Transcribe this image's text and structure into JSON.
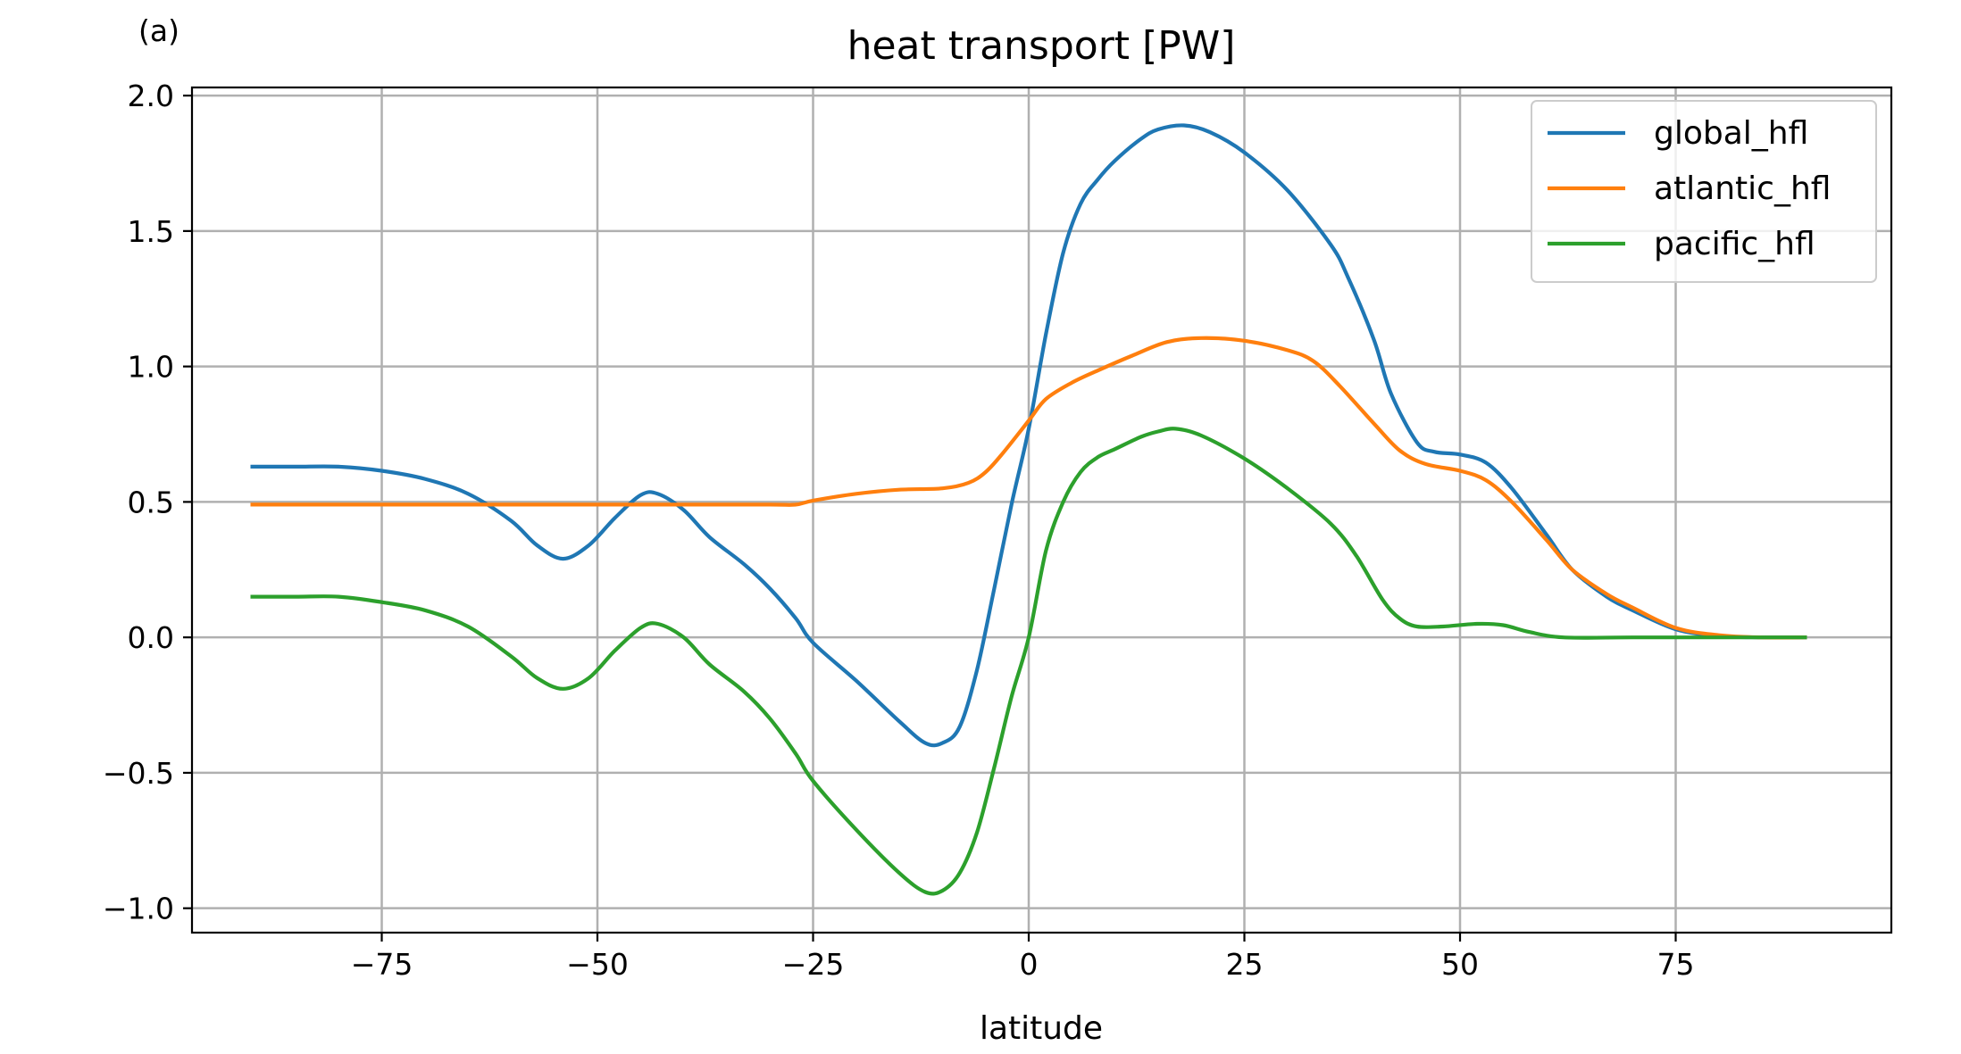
{
  "chart_data": {
    "type": "line",
    "panel_label": "(a)",
    "title": "heat transport [PW]",
    "xlabel": "latitude",
    "ylabel": "",
    "xlim": [
      -97,
      100
    ],
    "ylim": [
      -1.09,
      2.03
    ],
    "xticks": [
      -75,
      -50,
      -25,
      0,
      25,
      50,
      75
    ],
    "xtick_labels": [
      "−75",
      "−50",
      "−25",
      "0",
      "25",
      "50",
      "75"
    ],
    "yticks": [
      -1.0,
      -0.5,
      0.0,
      0.5,
      1.0,
      1.5,
      2.0
    ],
    "ytick_labels": [
      "−1.0",
      "−0.5",
      "0.0",
      "0.5",
      "1.0",
      "1.5",
      "2.0"
    ],
    "grid": true,
    "legend_position": "top-right",
    "series": [
      {
        "name": "global_hfl",
        "color": "#1f77b4",
        "points": [
          [
            -90,
            0.63
          ],
          [
            -85,
            0.63
          ],
          [
            -80,
            0.63
          ],
          [
            -75,
            0.615
          ],
          [
            -70,
            0.585
          ],
          [
            -65,
            0.53
          ],
          [
            -60,
            0.43
          ],
          [
            -57,
            0.34
          ],
          [
            -54,
            0.29
          ],
          [
            -51,
            0.34
          ],
          [
            -48,
            0.44
          ],
          [
            -45,
            0.525
          ],
          [
            -43,
            0.53
          ],
          [
            -40,
            0.47
          ],
          [
            -37,
            0.37
          ],
          [
            -33,
            0.27
          ],
          [
            -30,
            0.18
          ],
          [
            -27,
            0.07
          ],
          [
            -25,
            -0.02
          ],
          [
            -20,
            -0.16
          ],
          [
            -15,
            -0.31
          ],
          [
            -12,
            -0.39
          ],
          [
            -10,
            -0.39
          ],
          [
            -8,
            -0.33
          ],
          [
            -6,
            -0.12
          ],
          [
            -4,
            0.18
          ],
          [
            -2,
            0.49
          ],
          [
            0,
            0.77
          ],
          [
            2,
            1.12
          ],
          [
            4,
            1.42
          ],
          [
            6,
            1.6
          ],
          [
            8,
            1.69
          ],
          [
            10,
            1.76
          ],
          [
            13,
            1.84
          ],
          [
            15,
            1.875
          ],
          [
            18,
            1.89
          ],
          [
            21,
            1.865
          ],
          [
            25,
            1.79
          ],
          [
            30,
            1.65
          ],
          [
            35,
            1.45
          ],
          [
            37,
            1.33
          ],
          [
            40,
            1.1
          ],
          [
            42,
            0.9
          ],
          [
            45,
            0.72
          ],
          [
            47,
            0.685
          ],
          [
            50,
            0.675
          ],
          [
            53,
            0.645
          ],
          [
            56,
            0.55
          ],
          [
            60,
            0.38
          ],
          [
            63,
            0.25
          ],
          [
            67,
            0.15
          ],
          [
            70,
            0.1
          ],
          [
            75,
            0.03
          ],
          [
            80,
            0.005
          ],
          [
            85,
            0.0
          ],
          [
            90,
            0.0
          ]
        ]
      },
      {
        "name": "atlantic_hfl",
        "color": "#ff7f0e",
        "points": [
          [
            -90,
            0.49
          ],
          [
            -80,
            0.49
          ],
          [
            -70,
            0.49
          ],
          [
            -60,
            0.49
          ],
          [
            -50,
            0.49
          ],
          [
            -40,
            0.49
          ],
          [
            -30,
            0.49
          ],
          [
            -27,
            0.49
          ],
          [
            -25,
            0.505
          ],
          [
            -20,
            0.53
          ],
          [
            -15,
            0.545
          ],
          [
            -10,
            0.55
          ],
          [
            -7,
            0.57
          ],
          [
            -5,
            0.61
          ],
          [
            -3,
            0.68
          ],
          [
            0,
            0.8
          ],
          [
            2,
            0.88
          ],
          [
            5,
            0.94
          ],
          [
            8,
            0.985
          ],
          [
            12,
            1.04
          ],
          [
            16,
            1.09
          ],
          [
            20,
            1.105
          ],
          [
            25,
            1.095
          ],
          [
            30,
            1.06
          ],
          [
            33,
            1.02
          ],
          [
            36,
            0.93
          ],
          [
            40,
            0.79
          ],
          [
            43,
            0.69
          ],
          [
            46,
            0.64
          ],
          [
            50,
            0.615
          ],
          [
            53,
            0.58
          ],
          [
            56,
            0.5
          ],
          [
            60,
            0.36
          ],
          [
            63,
            0.25
          ],
          [
            67,
            0.16
          ],
          [
            70,
            0.11
          ],
          [
            75,
            0.035
          ],
          [
            80,
            0.008
          ],
          [
            85,
            0.0
          ],
          [
            90,
            0.0
          ]
        ]
      },
      {
        "name": "pacific_hfl",
        "color": "#2ca02c",
        "points": [
          [
            -90,
            0.15
          ],
          [
            -85,
            0.15
          ],
          [
            -80,
            0.15
          ],
          [
            -75,
            0.13
          ],
          [
            -70,
            0.1
          ],
          [
            -65,
            0.04
          ],
          [
            -60,
            -0.07
          ],
          [
            -57,
            -0.15
          ],
          [
            -54,
            -0.19
          ],
          [
            -51,
            -0.15
          ],
          [
            -48,
            -0.05
          ],
          [
            -45,
            0.035
          ],
          [
            -43,
            0.05
          ],
          [
            -40,
            0.0
          ],
          [
            -37,
            -0.1
          ],
          [
            -33,
            -0.2
          ],
          [
            -30,
            -0.3
          ],
          [
            -27,
            -0.43
          ],
          [
            -25,
            -0.53
          ],
          [
            -20,
            -0.71
          ],
          [
            -15,
            -0.87
          ],
          [
            -12,
            -0.94
          ],
          [
            -10,
            -0.935
          ],
          [
            -8,
            -0.87
          ],
          [
            -6,
            -0.72
          ],
          [
            -4,
            -0.48
          ],
          [
            -2,
            -0.22
          ],
          [
            0,
            0.0
          ],
          [
            2,
            0.32
          ],
          [
            4,
            0.5
          ],
          [
            6,
            0.61
          ],
          [
            8,
            0.665
          ],
          [
            10,
            0.695
          ],
          [
            13,
            0.74
          ],
          [
            15,
            0.76
          ],
          [
            17,
            0.77
          ],
          [
            20,
            0.745
          ],
          [
            25,
            0.66
          ],
          [
            30,
            0.55
          ],
          [
            35,
            0.42
          ],
          [
            38,
            0.3
          ],
          [
            41,
            0.14
          ],
          [
            43,
            0.07
          ],
          [
            45,
            0.04
          ],
          [
            48,
            0.04
          ],
          [
            52,
            0.05
          ],
          [
            55,
            0.045
          ],
          [
            58,
            0.02
          ],
          [
            62,
            0.0
          ],
          [
            70,
            0.0
          ],
          [
            80,
            0.0
          ],
          [
            90,
            0.0
          ]
        ]
      }
    ]
  }
}
